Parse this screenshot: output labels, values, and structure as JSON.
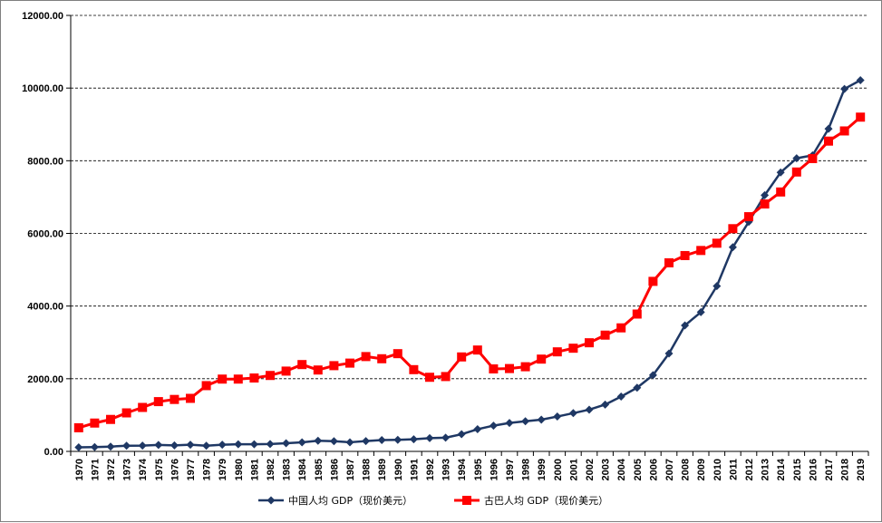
{
  "chart_data": {
    "type": "line",
    "x": [
      "1970",
      "1971",
      "1972",
      "1973",
      "1974",
      "1975",
      "1976",
      "1977",
      "1978",
      "1979",
      "1980",
      "1981",
      "1982",
      "1983",
      "1984",
      "1985",
      "1986",
      "1987",
      "1988",
      "1989",
      "1990",
      "1991",
      "1992",
      "1993",
      "1994",
      "1995",
      "1996",
      "1997",
      "1998",
      "1999",
      "2000",
      "2001",
      "2002",
      "2003",
      "2004",
      "2005",
      "2006",
      "2007",
      "2008",
      "2009",
      "2010",
      "2011",
      "2012",
      "2013",
      "2014",
      "2015",
      "2016",
      "2017",
      "2018",
      "2019"
    ],
    "ylim": [
      0,
      12000
    ],
    "yticks": [
      "0.00",
      "2000.00",
      "4000.00",
      "6000.00",
      "8000.00",
      "10000.00",
      "12000.00"
    ],
    "grid": "horizontal-dashed",
    "legend_position": "bottom",
    "series": [
      {
        "name": "中国人均 GDP（现价美元）",
        "color": "#1f3864",
        "marker": "diamond",
        "values": [
          113,
          119,
          132,
          157,
          160,
          178,
          165,
          185,
          156,
          184,
          195,
          197,
          203,
          225,
          250,
          294,
          281,
          251,
          284,
          311,
          318,
          333,
          366,
          377,
          473,
          610,
          709,
          782,
          829,
          873,
          959,
          1053,
          1149,
          1289,
          1509,
          1753,
          2099,
          2694,
          3468,
          3832,
          4550,
          5618,
          6317,
          7051,
          7679,
          8067,
          8148,
          8879,
          9977,
          10217
        ]
      },
      {
        "name": "古巴人均 GDP（现价美元）",
        "color": "#ff0000",
        "marker": "square",
        "values": [
          650,
          780,
          880,
          1060,
          1210,
          1370,
          1430,
          1460,
          1810,
          1990,
          1990,
          2020,
          2090,
          2210,
          2390,
          2240,
          2360,
          2430,
          2610,
          2550,
          2690,
          2250,
          2040,
          2060,
          2600,
          2790,
          2270,
          2280,
          2330,
          2540,
          2740,
          2840,
          2990,
          3200,
          3400,
          3780,
          4680,
          5190,
          5390,
          5530,
          5730,
          6130,
          6460,
          6810,
          7140,
          7690,
          8060,
          8540,
          8820,
          9200
        ]
      }
    ]
  }
}
